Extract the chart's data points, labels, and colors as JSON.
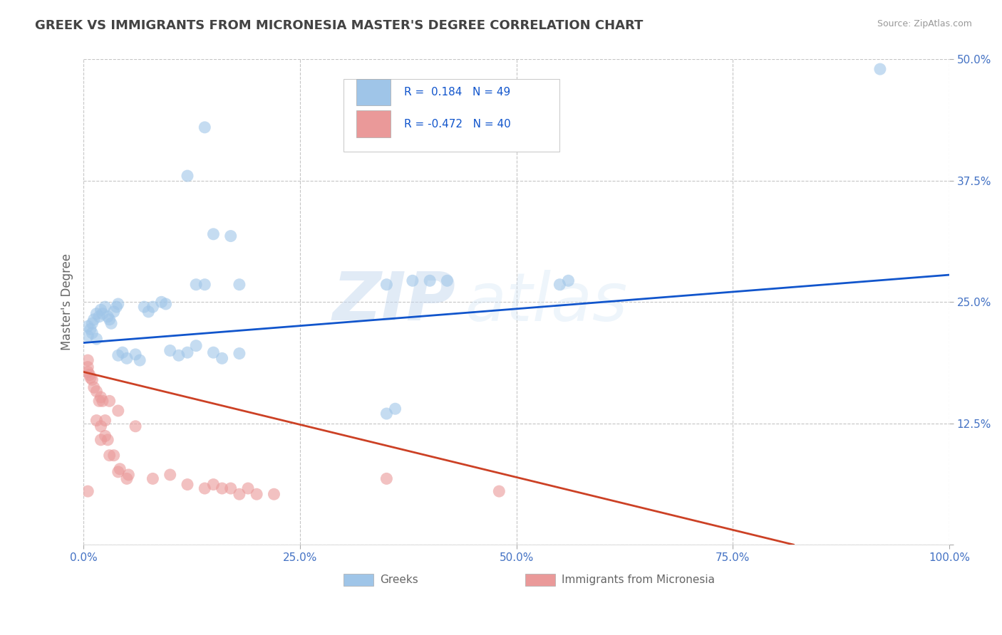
{
  "title": "GREEK VS IMMIGRANTS FROM MICRONESIA MASTER'S DEGREE CORRELATION CHART",
  "source": "Source: ZipAtlas.com",
  "ylabel": "Master's Degree",
  "xlim": [
    0,
    1.0
  ],
  "ylim": [
    0,
    0.5
  ],
  "xticks": [
    0.0,
    0.25,
    0.5,
    0.75,
    1.0
  ],
  "xticklabels": [
    "0.0%",
    "25.0%",
    "50.0%",
    "75.0%",
    "100.0%"
  ],
  "yticks": [
    0.0,
    0.125,
    0.25,
    0.375,
    0.5
  ],
  "yticklabels": [
    "",
    "12.5%",
    "25.0%",
    "37.5%",
    "50.0%"
  ],
  "blue_color": "#9fc5e8",
  "pink_color": "#ea9999",
  "blue_line_color": "#1155cc",
  "pink_line_color": "#cc4125",
  "watermark_text": "ZIPAtlas",
  "watermark_color": "#cfe2f3",
  "blue_scatter": [
    [
      0.005,
      0.225
    ],
    [
      0.008,
      0.222
    ],
    [
      0.01,
      0.228
    ],
    [
      0.012,
      0.232
    ],
    [
      0.015,
      0.238
    ],
    [
      0.018,
      0.235
    ],
    [
      0.02,
      0.242
    ],
    [
      0.022,
      0.238
    ],
    [
      0.025,
      0.245
    ],
    [
      0.028,
      0.235
    ],
    [
      0.03,
      0.232
    ],
    [
      0.032,
      0.228
    ],
    [
      0.035,
      0.24
    ],
    [
      0.038,
      0.245
    ],
    [
      0.04,
      0.248
    ],
    [
      0.005,
      0.215
    ],
    [
      0.01,
      0.218
    ],
    [
      0.015,
      0.212
    ],
    [
      0.04,
      0.195
    ],
    [
      0.045,
      0.198
    ],
    [
      0.05,
      0.192
    ],
    [
      0.06,
      0.196
    ],
    [
      0.065,
      0.19
    ],
    [
      0.07,
      0.245
    ],
    [
      0.075,
      0.24
    ],
    [
      0.08,
      0.245
    ],
    [
      0.09,
      0.25
    ],
    [
      0.095,
      0.248
    ],
    [
      0.1,
      0.2
    ],
    [
      0.11,
      0.195
    ],
    [
      0.12,
      0.198
    ],
    [
      0.13,
      0.205
    ],
    [
      0.15,
      0.198
    ],
    [
      0.16,
      0.192
    ],
    [
      0.18,
      0.197
    ],
    [
      0.13,
      0.268
    ],
    [
      0.14,
      0.268
    ],
    [
      0.18,
      0.268
    ],
    [
      0.15,
      0.32
    ],
    [
      0.17,
      0.318
    ],
    [
      0.12,
      0.38
    ],
    [
      0.14,
      0.43
    ],
    [
      0.35,
      0.268
    ],
    [
      0.38,
      0.272
    ],
    [
      0.4,
      0.272
    ],
    [
      0.42,
      0.272
    ],
    [
      0.35,
      0.135
    ],
    [
      0.36,
      0.14
    ],
    [
      0.55,
      0.268
    ],
    [
      0.56,
      0.272
    ],
    [
      0.92,
      0.49
    ]
  ],
  "pink_scatter": [
    [
      0.005,
      0.19
    ],
    [
      0.005,
      0.183
    ],
    [
      0.005,
      0.178
    ],
    [
      0.007,
      0.175
    ],
    [
      0.008,
      0.172
    ],
    [
      0.01,
      0.17
    ],
    [
      0.012,
      0.162
    ],
    [
      0.015,
      0.158
    ],
    [
      0.018,
      0.148
    ],
    [
      0.02,
      0.152
    ],
    [
      0.022,
      0.148
    ],
    [
      0.015,
      0.128
    ],
    [
      0.02,
      0.122
    ],
    [
      0.025,
      0.128
    ],
    [
      0.02,
      0.108
    ],
    [
      0.025,
      0.112
    ],
    [
      0.028,
      0.108
    ],
    [
      0.03,
      0.092
    ],
    [
      0.035,
      0.092
    ],
    [
      0.04,
      0.075
    ],
    [
      0.042,
      0.078
    ],
    [
      0.05,
      0.068
    ],
    [
      0.052,
      0.072
    ],
    [
      0.08,
      0.068
    ],
    [
      0.1,
      0.072
    ],
    [
      0.12,
      0.062
    ],
    [
      0.14,
      0.058
    ],
    [
      0.15,
      0.062
    ],
    [
      0.16,
      0.058
    ],
    [
      0.17,
      0.058
    ],
    [
      0.18,
      0.052
    ],
    [
      0.19,
      0.058
    ],
    [
      0.2,
      0.052
    ],
    [
      0.22,
      0.052
    ],
    [
      0.35,
      0.068
    ],
    [
      0.03,
      0.148
    ],
    [
      0.04,
      0.138
    ],
    [
      0.06,
      0.122
    ],
    [
      0.48,
      0.055
    ],
    [
      0.005,
      0.055
    ]
  ],
  "blue_line_x": [
    0.0,
    1.0
  ],
  "blue_line_y": [
    0.208,
    0.278
  ],
  "pink_line_x": [
    0.0,
    0.82
  ],
  "pink_line_y": [
    0.178,
    0.0
  ],
  "background_color": "#ffffff",
  "title_color": "#434343",
  "axis_color": "#666666",
  "grid_color": "#b7b7b7",
  "tick_color": "#4472c4"
}
